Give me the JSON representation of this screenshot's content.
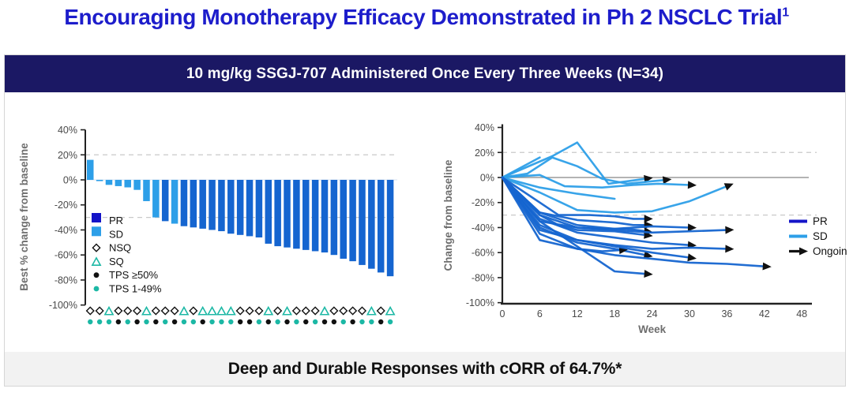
{
  "title": {
    "text": "Encouraging Monotherapy Efficacy Demonstrated in Ph 2 NSCLC Trial",
    "superscript": "1"
  },
  "banner": {
    "text": "10 mg/kg SSGJ-707 Administered Once Every Three Weeks (N=34)"
  },
  "footer": {
    "text": "Deep and Durable Responses with cORR of 64.7%*"
  },
  "colors": {
    "title": "#1d1dcb",
    "banner_bg": "#1b1864",
    "banner_text": "#ffffff",
    "footer_bg": "#f2f2f2",
    "footer_text": "#111111",
    "pr": "#1414c8",
    "pr_line": "#1565d0",
    "sd": "#2d9fe8",
    "teal": "#1cb8a5",
    "black": "#111111",
    "axis": "#222222",
    "tick_text": "#4a4a4a",
    "axis_label": "#6e6e6e",
    "grid": "#c9c9c9",
    "zero_line": "#9a9a9a",
    "zero_faint": "#d7e3f0"
  },
  "chart_data": [
    {
      "type": "bar",
      "name": "waterfall",
      "ylabel": "Best % change from baseline",
      "ylim": [
        -100,
        40
      ],
      "yticks": [
        40,
        20,
        0,
        -20,
        -40,
        -60,
        -80,
        -100
      ],
      "dashed_gridlines": [
        20,
        -30
      ],
      "values": [
        16,
        -1,
        -4,
        -5,
        -6,
        -8,
        -17,
        -30,
        -33,
        -35,
        -37,
        -38,
        -39,
        -40,
        -41,
        -43,
        -44,
        -45,
        -46,
        -51,
        -53,
        -54,
        -55,
        -56,
        -57,
        -58,
        -60,
        -63,
        -65,
        -68,
        -71,
        -74,
        -77
      ],
      "response": [
        "SD",
        "SD",
        "SD",
        "SD",
        "SD",
        "SD",
        "SD",
        "SD",
        "PR",
        "SD",
        "PR",
        "PR",
        "PR",
        "PR",
        "PR",
        "PR",
        "PR",
        "PR",
        "PR",
        "PR",
        "PR",
        "PR",
        "PR",
        "PR",
        "PR",
        "PR",
        "PR",
        "PR",
        "PR",
        "PR",
        "PR",
        "PR",
        "PR"
      ],
      "histology": [
        "NSQ",
        "NSQ",
        "SQ",
        "NSQ",
        "NSQ",
        "NSQ",
        "SQ",
        "NSQ",
        "NSQ",
        "NSQ",
        "SQ",
        "NSQ",
        "SQ",
        "SQ",
        "SQ",
        "SQ",
        "NSQ",
        "NSQ",
        "NSQ",
        "SQ",
        "NSQ",
        "SQ",
        "NSQ",
        "NSQ",
        "NSQ",
        "SQ",
        "NSQ",
        "NSQ",
        "NSQ",
        "NSQ",
        "SQ",
        "NSQ",
        "SQ"
      ],
      "tps": [
        "1-49",
        "1-49",
        "1-49",
        "≥50",
        "1-49",
        "≥50",
        "1-49",
        "≥50",
        "1-49",
        "≥50",
        "1-49",
        "1-49",
        "≥50",
        "1-49",
        "1-49",
        "1-49",
        "≥50",
        "≥50",
        "1-49",
        "≥50",
        "1-49",
        "≥50",
        "1-49",
        "≥50",
        "1-49",
        "≥50",
        "≥50",
        "1-49",
        "≥50",
        "1-49",
        "1-49",
        "≥50",
        "1-49"
      ],
      "legend": [
        {
          "swatch": "pr",
          "label": "PR"
        },
        {
          "swatch": "sd",
          "label": "SD"
        },
        {
          "swatch": "nsq",
          "label": "NSQ"
        },
        {
          "swatch": "sq",
          "label": "SQ"
        },
        {
          "swatch": "tps-high",
          "label": "TPS ≥50%"
        },
        {
          "swatch": "tps-low",
          "label": "TPS 1-49%"
        }
      ]
    },
    {
      "type": "line",
      "name": "spider",
      "xlabel": "Week",
      "ylabel": "Change from baseline",
      "xlim": [
        0,
        48
      ],
      "ylim": [
        -100,
        40
      ],
      "xticks": [
        0,
        6,
        12,
        18,
        24,
        30,
        36,
        42,
        48
      ],
      "yticks": [
        40,
        20,
        0,
        -20,
        -40,
        -60,
        -80,
        -100
      ],
      "dashed_gridlines": [
        20,
        -30
      ],
      "zero_line": 0,
      "legend": [
        {
          "swatch": "pr-line",
          "label": "PR"
        },
        {
          "swatch": "sd-line",
          "label": "SD"
        },
        {
          "swatch": "arrow",
          "label": "Ongoing"
        }
      ],
      "series": [
        {
          "response": "SD",
          "ongoing": false,
          "points": [
            [
              0,
              0
            ],
            [
              6,
              16
            ]
          ]
        },
        {
          "response": "SD",
          "ongoing": true,
          "points": [
            [
              0,
              0
            ],
            [
              8,
              17
            ],
            [
              12,
              28
            ],
            [
              17,
              -5
            ],
            [
              20,
              -3
            ],
            [
              23,
              -1
            ]
          ]
        },
        {
          "response": "SD",
          "ongoing": true,
          "points": [
            [
              0,
              0
            ],
            [
              4,
              3
            ],
            [
              8,
              16
            ],
            [
              12,
              9
            ],
            [
              16,
              -1
            ],
            [
              20,
              -5
            ],
            [
              26,
              -2
            ]
          ]
        },
        {
          "response": "SD",
          "ongoing": true,
          "points": [
            [
              0,
              0
            ],
            [
              6,
              2
            ],
            [
              10,
              -7
            ],
            [
              16,
              -8
            ],
            [
              21,
              -6
            ],
            [
              25,
              -5
            ],
            [
              30,
              -6
            ]
          ]
        },
        {
          "response": "SD",
          "ongoing": false,
          "points": [
            [
              0,
              0
            ],
            [
              6,
              -8
            ],
            [
              12,
              -13
            ],
            [
              18,
              -17
            ]
          ]
        },
        {
          "response": "SD",
          "ongoing": true,
          "points": [
            [
              0,
              0
            ],
            [
              6,
              -12
            ],
            [
              12,
              -26
            ],
            [
              18,
              -28
            ],
            [
              24,
              -27
            ],
            [
              30,
              -19
            ],
            [
              36,
              -7
            ]
          ]
        },
        {
          "response": "PR",
          "ongoing": true,
          "points": [
            [
              0,
              0
            ],
            [
              6,
              -20
            ],
            [
              9,
              -30
            ],
            [
              14,
              -30
            ],
            [
              18,
              -31
            ],
            [
              21,
              -33
            ],
            [
              23,
              -33
            ]
          ]
        },
        {
          "response": "PR",
          "ongoing": true,
          "points": [
            [
              0,
              0
            ],
            [
              6,
              -28
            ],
            [
              12,
              -34
            ],
            [
              18,
              -36
            ],
            [
              21,
              -38
            ],
            [
              23,
              -38
            ]
          ]
        },
        {
          "response": "PR",
          "ongoing": true,
          "points": [
            [
              0,
              0
            ],
            [
              6,
              -35
            ],
            [
              12,
              -40
            ],
            [
              16,
              -41
            ],
            [
              20,
              -41
            ],
            [
              23,
              -43
            ]
          ]
        },
        {
          "response": "PR",
          "ongoing": true,
          "points": [
            [
              0,
              0
            ],
            [
              6,
              -30
            ],
            [
              9,
              -38
            ],
            [
              12,
              -42
            ],
            [
              18,
              -43
            ],
            [
              23,
              -46
            ]
          ]
        },
        {
          "response": "PR",
          "ongoing": true,
          "points": [
            [
              0,
              0
            ],
            [
              6,
              -40
            ],
            [
              12,
              -52
            ],
            [
              18,
              -57
            ],
            [
              21,
              -60
            ],
            [
              23,
              -62
            ]
          ]
        },
        {
          "response": "PR",
          "ongoing": true,
          "points": [
            [
              0,
              0
            ],
            [
              6,
              -35
            ],
            [
              12,
              -55
            ],
            [
              18,
              -75
            ],
            [
              23,
              -77
            ]
          ]
        },
        {
          "response": "PR",
          "ongoing": true,
          "points": [
            [
              0,
              0
            ],
            [
              6,
              -50
            ],
            [
              12,
              -57
            ],
            [
              16,
              -59
            ],
            [
              19,
              -58
            ]
          ]
        },
        {
          "response": "PR",
          "ongoing": true,
          "points": [
            [
              0,
              0
            ],
            [
              6,
              -28
            ],
            [
              12,
              -38
            ],
            [
              18,
              -41
            ],
            [
              24,
              -39
            ],
            [
              30,
              -40
            ]
          ]
        },
        {
          "response": "PR",
          "ongoing": true,
          "points": [
            [
              0,
              0
            ],
            [
              6,
              -33
            ],
            [
              12,
              -44
            ],
            [
              18,
              -48
            ],
            [
              24,
              -52
            ],
            [
              30,
              -54
            ]
          ]
        },
        {
          "response": "PR",
          "ongoing": true,
          "points": [
            [
              0,
              0
            ],
            [
              6,
              -38
            ],
            [
              12,
              -50
            ],
            [
              18,
              -55
            ],
            [
              24,
              -60
            ],
            [
              30,
              -64
            ]
          ]
        },
        {
          "response": "PR",
          "ongoing": true,
          "points": [
            [
              0,
              0
            ],
            [
              6,
              -30
            ],
            [
              12,
              -40
            ],
            [
              18,
              -42
            ],
            [
              24,
              -44
            ],
            [
              30,
              -43
            ],
            [
              36,
              -42
            ]
          ]
        },
        {
          "response": "PR",
          "ongoing": true,
          "points": [
            [
              0,
              0
            ],
            [
              6,
              -42
            ],
            [
              12,
              -50
            ],
            [
              18,
              -54
            ],
            [
              24,
              -57
            ],
            [
              30,
              -56
            ],
            [
              36,
              -57
            ]
          ]
        },
        {
          "response": "PR",
          "ongoing": true,
          "points": [
            [
              0,
              0
            ],
            [
              6,
              -45
            ],
            [
              12,
              -57
            ],
            [
              18,
              -62
            ],
            [
              24,
              -65
            ],
            [
              30,
              -68
            ],
            [
              36,
              -69
            ],
            [
              42,
              -71
            ]
          ]
        }
      ]
    }
  ]
}
